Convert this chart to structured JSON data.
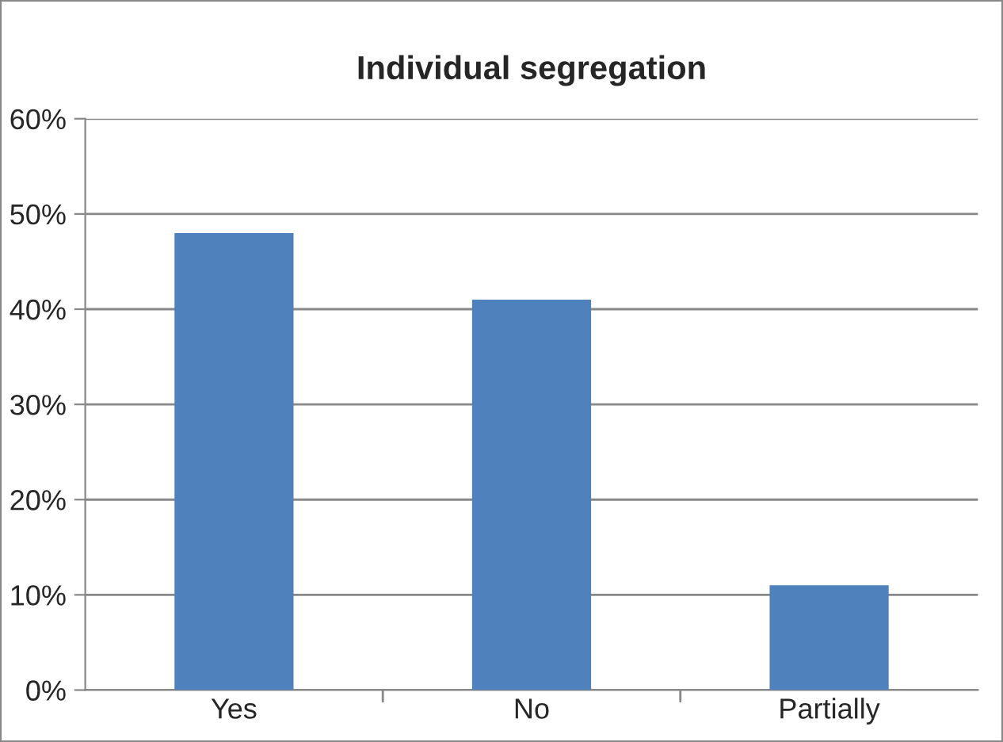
{
  "chart_data": {
    "type": "bar",
    "title": "Individual segregation",
    "categories": [
      "Yes",
      "No",
      "Partially"
    ],
    "values": [
      48,
      41,
      11
    ],
    "color": "#4f81bd",
    "ylim": [
      0,
      60
    ],
    "yticks": [
      {
        "value": 0,
        "label": "0%"
      },
      {
        "value": 10,
        "label": "10%"
      },
      {
        "value": 20,
        "label": "20%"
      },
      {
        "value": 30,
        "label": "30%"
      },
      {
        "value": 40,
        "label": "40%"
      },
      {
        "value": 50,
        "label": "50%"
      },
      {
        "value": 60,
        "label": "60%"
      }
    ],
    "grid": "y",
    "legend": false
  }
}
